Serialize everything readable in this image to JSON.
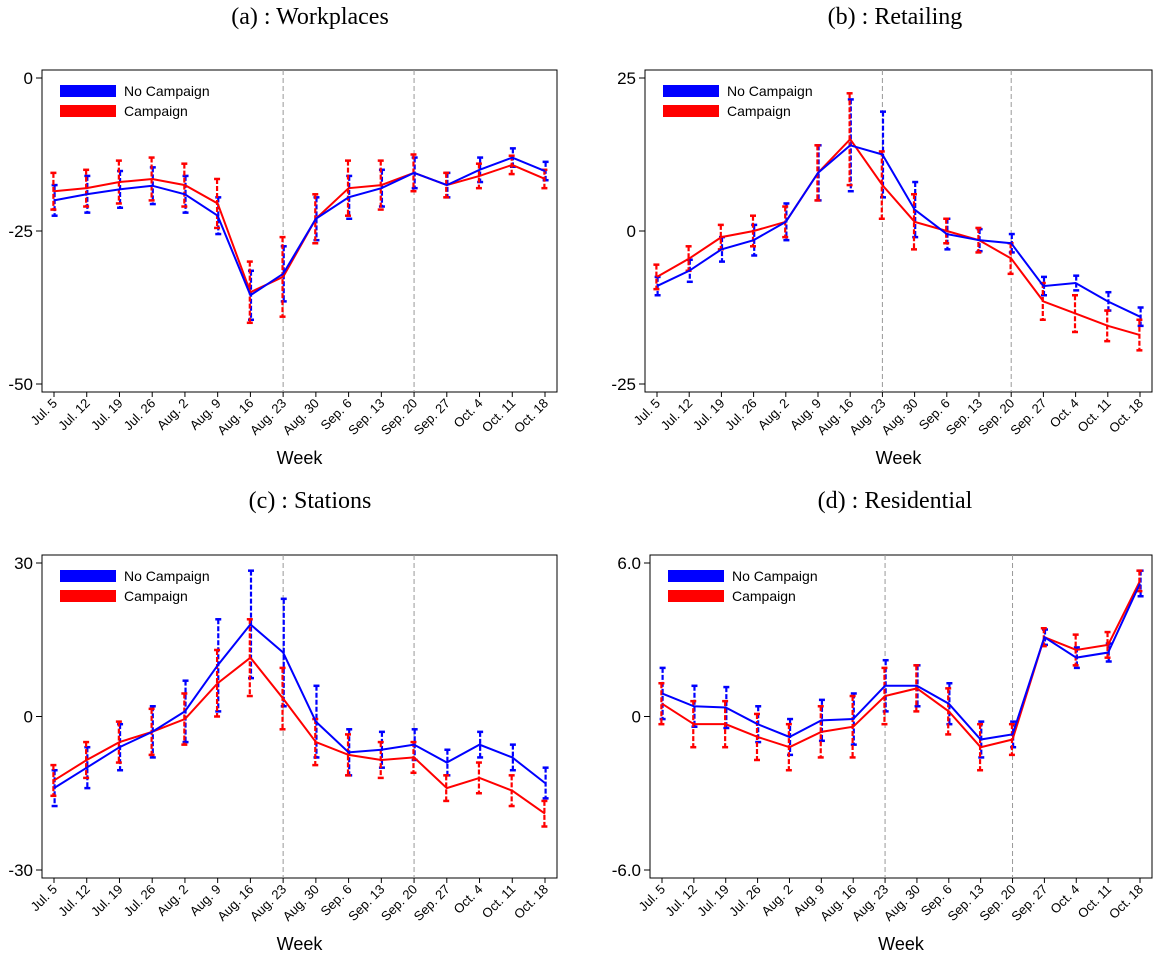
{
  "colors": {
    "no_campaign": "#0000ff",
    "campaign": "#ff0000",
    "vline": "#999999"
  },
  "chart_data": [
    {
      "type": "line",
      "title": "(a) : Workplaces",
      "xlabel": "Week",
      "categories": [
        "Jul. 5",
        "Jul. 12",
        "Jul. 19",
        "Jul. 26",
        "Aug. 2",
        "Aug. 9",
        "Aug. 16",
        "Aug. 23",
        "Aug. 30",
        "Sep. 6",
        "Sep. 13",
        "Sep. 20",
        "Sep. 27",
        "Oct. 4",
        "Oct. 11",
        "Oct. 18"
      ],
      "ylim": [
        -50,
        0
      ],
      "yticks": [
        0,
        -25,
        -50
      ],
      "ytick_labels": [
        "0",
        "-25",
        "-50"
      ],
      "vlines": [
        "Aug. 23",
        "Sep. 20"
      ],
      "legend": "top-left",
      "series": [
        {
          "name": "No Campaign",
          "values": [
            -20,
            -19,
            -18.2,
            -17.6,
            -19,
            -22.5,
            -35.5,
            -32,
            -23,
            -19.5,
            -18,
            -15.5,
            -17.5,
            -15,
            -13,
            -15.2
          ],
          "err": [
            2.5,
            3,
            3,
            3,
            3,
            3,
            4,
            4.5,
            3.5,
            3.5,
            3,
            2.5,
            2,
            2,
            1.5,
            1.5
          ]
        },
        {
          "name": "Campaign",
          "values": [
            -18.5,
            -18,
            -17,
            -16.5,
            -17.5,
            -20.5,
            -35,
            -32.5,
            -23,
            -18,
            -17.5,
            -15.5,
            -17.5,
            -16,
            -14.2,
            -16.5
          ],
          "err": [
            3,
            3,
            3.5,
            3.5,
            3.5,
            4,
            5,
            6.5,
            4,
            4.5,
            4,
            3,
            2,
            2,
            1.5,
            1.5
          ]
        }
      ]
    },
    {
      "type": "line",
      "title": "(b) : Retailing",
      "xlabel": "Week",
      "categories": [
        "Jul. 5",
        "Jul. 12",
        "Jul. 19",
        "Jul. 26",
        "Aug. 2",
        "Aug. 9",
        "Aug. 16",
        "Aug. 23",
        "Aug. 30",
        "Sep. 6",
        "Sep. 13",
        "Sep. 20",
        "Sep. 27",
        "Oct. 4",
        "Oct. 11",
        "Oct. 18"
      ],
      "ylim": [
        -25,
        25
      ],
      "yticks": [
        25,
        0,
        -25
      ],
      "ytick_labels": [
        "25",
        "0",
        "-25"
      ],
      "vlines": [
        "Aug. 23",
        "Sep. 20"
      ],
      "legend": "top-left",
      "series": [
        {
          "name": "No Campaign",
          "values": [
            -9,
            -6.5,
            -3,
            -1.5,
            1.5,
            9.5,
            14,
            12.5,
            3.5,
            -0.5,
            -1.5,
            -2,
            -9,
            -8.5,
            -11.5,
            -14
          ],
          "err": [
            1.5,
            1.8,
            2,
            2.5,
            3,
            4.5,
            7.5,
            7,
            4.5,
            2.5,
            1.8,
            1.5,
            1.5,
            1.2,
            1.5,
            1.5
          ]
        },
        {
          "name": "Campaign",
          "values": [
            -7.5,
            -4.5,
            -1,
            0,
            1.5,
            9.5,
            15,
            7.5,
            1.5,
            0,
            -1.5,
            -4.5,
            -11.5,
            -13.5,
            -15.5,
            -17
          ],
          "err": [
            2,
            2,
            2,
            2.5,
            2.5,
            4.5,
            7.5,
            5.5,
            4.5,
            2,
            2,
            2.5,
            3,
            3,
            2.5,
            2.5
          ]
        }
      ]
    },
    {
      "type": "line",
      "title": "(c) : Stations",
      "xlabel": "Week",
      "categories": [
        "Jul. 5",
        "Jul. 12",
        "Jul. 19",
        "Jul. 26",
        "Aug. 2",
        "Aug. 9",
        "Aug. 16",
        "Aug. 23",
        "Aug. 30",
        "Sep. 6",
        "Sep. 13",
        "Sep. 20",
        "Sep. 27",
        "Oct. 4",
        "Oct. 11",
        "Oct. 18"
      ],
      "ylim": [
        -30,
        30
      ],
      "yticks": [
        30,
        0,
        -30
      ],
      "ytick_labels": [
        "30",
        "0",
        "-30"
      ],
      "vlines": [
        "Aug. 23",
        "Sep. 20"
      ],
      "legend": "top-left",
      "series": [
        {
          "name": "No Campaign",
          "values": [
            -14,
            -10,
            -6,
            -3,
            1,
            10,
            18,
            12.5,
            -1,
            -7,
            -6.5,
            -5.5,
            -9,
            -5.5,
            -8,
            -13
          ],
          "err": [
            3.5,
            4,
            4.5,
            5,
            6,
            9,
            10.5,
            10.5,
            7,
            4.5,
            3.5,
            3,
            2.5,
            2.5,
            2.5,
            3
          ]
        },
        {
          "name": "Campaign",
          "values": [
            -12.5,
            -8.5,
            -5,
            -3,
            -0.5,
            6.5,
            11.5,
            3.5,
            -5,
            -7.5,
            -8.5,
            -8,
            -14,
            -12,
            -14.5,
            -19
          ],
          "err": [
            3,
            3.5,
            4,
            4.5,
            5,
            6.5,
            7.5,
            6,
            4.5,
            4,
            3.5,
            3,
            2.5,
            3,
            3,
            2.5
          ]
        }
      ]
    },
    {
      "type": "line",
      "title": "(d) : Residential",
      "xlabel": "Week",
      "categories": [
        "Jul. 5",
        "Jul. 12",
        "Jul. 19",
        "Jul. 26",
        "Aug. 2",
        "Aug. 9",
        "Aug. 16",
        "Aug. 23",
        "Aug. 30",
        "Sep. 6",
        "Sep. 13",
        "Sep. 20",
        "Sep. 27",
        "Oct. 4",
        "Oct. 11",
        "Oct. 18"
      ],
      "ylim": [
        -6,
        6
      ],
      "yticks": [
        6,
        0,
        -6
      ],
      "ytick_labels": [
        "6.0",
        "0",
        "-6.0"
      ],
      "vlines": [
        "Aug. 23",
        "Sep. 20"
      ],
      "legend": "top-left",
      "series": [
        {
          "name": "No Campaign",
          "values": [
            0.9,
            0.4,
            0.35,
            -0.3,
            -0.8,
            -0.15,
            -0.1,
            1.2,
            1.2,
            0.5,
            -0.9,
            -0.7,
            3.1,
            2.3,
            2.5,
            5.2
          ],
          "err": [
            1,
            0.8,
            0.8,
            0.7,
            0.7,
            0.8,
            1,
            1,
            0.8,
            0.8,
            0.7,
            0.5,
            0.3,
            0.4,
            0.35,
            0.5
          ]
        },
        {
          "name": "Campaign",
          "values": [
            0.5,
            -0.3,
            -0.3,
            -0.8,
            -1.2,
            -0.6,
            -0.4,
            0.8,
            1.1,
            0.2,
            -1.2,
            -0.9,
            3.1,
            2.6,
            2.8,
            5.3
          ],
          "err": [
            0.8,
            0.9,
            0.9,
            0.9,
            0.9,
            1,
            1.2,
            1.1,
            0.9,
            0.9,
            0.9,
            0.6,
            0.35,
            0.6,
            0.5,
            0.4
          ]
        }
      ]
    }
  ]
}
